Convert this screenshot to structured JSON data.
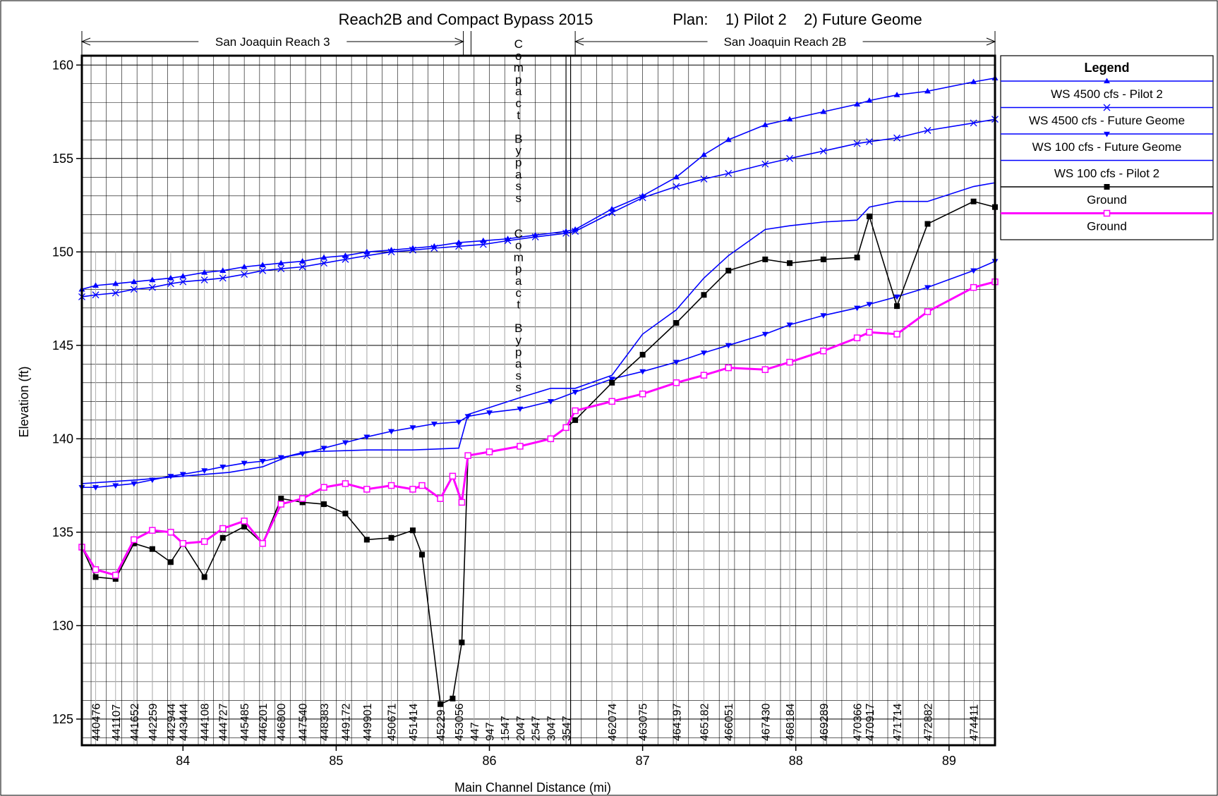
{
  "chart_data": {
    "type": "line",
    "title": "Reach2B and Compact Bypass 2015",
    "plan": "Plan:    1) Pilot 2    2) Future Geome",
    "xlabel": "Main Channel Distance (mi)",
    "ylabel": "Elevation (ft)",
    "xlim": [
      83.34,
      89.3
    ],
    "ylim": [
      123.6,
      160.5
    ],
    "xticks": [
      84,
      85,
      86,
      87,
      88,
      89
    ],
    "yticks": [
      125,
      130,
      135,
      140,
      145,
      150,
      155,
      160
    ],
    "grid": true,
    "legend_position": "right",
    "legend_title": "Legend",
    "reaches": [
      {
        "label": "San Joaquin Reach 3",
        "from": 83.34,
        "to": 85.83
      },
      {
        "label": "San Joaquin Reach 2B",
        "from": 86.56,
        "to": 89.3
      }
    ],
    "compact_label": "Compact Bypass",
    "series": [
      {
        "name": "WS  4500 cfs - Pilot 2",
        "color": "#0000ff",
        "marker": "tri-up",
        "points": [
          [
            83.34,
            148.0
          ],
          [
            83.43,
            148.2
          ],
          [
            83.56,
            148.3
          ],
          [
            83.68,
            148.4
          ],
          [
            83.8,
            148.5
          ],
          [
            83.92,
            148.6
          ],
          [
            84.0,
            148.7
          ],
          [
            84.14,
            148.9
          ],
          [
            84.26,
            149.0
          ],
          [
            84.4,
            149.2
          ],
          [
            84.52,
            149.3
          ],
          [
            84.64,
            149.4
          ],
          [
            84.78,
            149.5
          ],
          [
            84.92,
            149.7
          ],
          [
            85.06,
            149.8
          ],
          [
            85.2,
            150.0
          ],
          [
            85.36,
            150.1
          ],
          [
            85.5,
            150.2
          ],
          [
            85.64,
            150.3
          ],
          [
            85.8,
            150.5
          ],
          [
            85.96,
            150.6
          ],
          [
            86.12,
            150.7
          ],
          [
            86.3,
            150.9
          ],
          [
            86.5,
            151.1
          ],
          [
            86.56,
            151.2
          ],
          [
            86.8,
            152.3
          ],
          [
            87.0,
            153.0
          ],
          [
            87.22,
            154.0
          ],
          [
            87.4,
            155.2
          ],
          [
            87.56,
            156.0
          ],
          [
            87.8,
            156.8
          ],
          [
            87.96,
            157.1
          ],
          [
            88.18,
            157.5
          ],
          [
            88.4,
            157.9
          ],
          [
            88.48,
            158.1
          ],
          [
            88.66,
            158.4
          ],
          [
            88.86,
            158.6
          ],
          [
            89.16,
            159.1
          ],
          [
            89.3,
            159.3
          ]
        ]
      },
      {
        "name": "WS  4500 cfs - Future Geome",
        "color": "#0000ff",
        "marker": "x",
        "points": [
          [
            83.34,
            147.6
          ],
          [
            83.43,
            147.7
          ],
          [
            83.56,
            147.8
          ],
          [
            83.68,
            148.0
          ],
          [
            83.8,
            148.1
          ],
          [
            83.92,
            148.3
          ],
          [
            84.0,
            148.4
          ],
          [
            84.14,
            148.5
          ],
          [
            84.26,
            148.6
          ],
          [
            84.4,
            148.8
          ],
          [
            84.52,
            149.0
          ],
          [
            84.64,
            149.1
          ],
          [
            84.78,
            149.2
          ],
          [
            84.92,
            149.4
          ],
          [
            85.06,
            149.6
          ],
          [
            85.2,
            149.8
          ],
          [
            85.36,
            150.0
          ],
          [
            85.5,
            150.1
          ],
          [
            85.64,
            150.2
          ],
          [
            85.8,
            150.3
          ],
          [
            85.96,
            150.4
          ],
          [
            86.12,
            150.6
          ],
          [
            86.3,
            150.8
          ],
          [
            86.5,
            151.0
          ],
          [
            86.56,
            151.1
          ],
          [
            86.8,
            152.1
          ],
          [
            87.0,
            152.9
          ],
          [
            87.22,
            153.5
          ],
          [
            87.4,
            153.9
          ],
          [
            87.56,
            154.2
          ],
          [
            87.8,
            154.7
          ],
          [
            87.96,
            155.0
          ],
          [
            88.18,
            155.4
          ],
          [
            88.4,
            155.8
          ],
          [
            88.48,
            155.9
          ],
          [
            88.66,
            156.1
          ],
          [
            88.86,
            156.5
          ],
          [
            89.16,
            156.9
          ],
          [
            89.3,
            157.1
          ]
        ]
      },
      {
        "name": "WS  100 cfs - Future Geome",
        "color": "#0000ff",
        "marker": "tri-down",
        "points": [
          [
            83.34,
            137.4
          ],
          [
            83.43,
            137.4
          ],
          [
            83.56,
            137.5
          ],
          [
            83.68,
            137.6
          ],
          [
            83.8,
            137.8
          ],
          [
            83.92,
            138.0
          ],
          [
            84.0,
            138.1
          ],
          [
            84.14,
            138.3
          ],
          [
            84.26,
            138.5
          ],
          [
            84.4,
            138.7
          ],
          [
            84.52,
            138.8
          ],
          [
            84.64,
            139.0
          ],
          [
            84.78,
            139.2
          ],
          [
            84.92,
            139.5
          ],
          [
            85.06,
            139.8
          ],
          [
            85.2,
            140.1
          ],
          [
            85.36,
            140.4
          ],
          [
            85.5,
            140.6
          ],
          [
            85.64,
            140.8
          ],
          [
            85.8,
            140.9
          ],
          [
            85.86,
            141.2
          ],
          [
            86.0,
            141.4
          ],
          [
            86.2,
            141.6
          ],
          [
            86.4,
            142.0
          ],
          [
            86.56,
            142.5
          ],
          [
            86.8,
            143.2
          ],
          [
            87.0,
            143.6
          ],
          [
            87.22,
            144.1
          ],
          [
            87.4,
            144.6
          ],
          [
            87.56,
            145.0
          ],
          [
            87.8,
            145.6
          ],
          [
            87.96,
            146.1
          ],
          [
            88.18,
            146.6
          ],
          [
            88.4,
            147.0
          ],
          [
            88.48,
            147.2
          ],
          [
            88.66,
            147.6
          ],
          [
            88.86,
            148.1
          ],
          [
            89.16,
            149.0
          ],
          [
            89.3,
            149.5
          ]
        ]
      },
      {
        "name": "WS  100 cfs - Pilot 2",
        "color": "#0000ff",
        "marker": "none",
        "points": [
          [
            83.34,
            137.6
          ],
          [
            83.7,
            137.8
          ],
          [
            84.0,
            138.0
          ],
          [
            84.3,
            138.2
          ],
          [
            84.52,
            138.5
          ],
          [
            84.7,
            139.1
          ],
          [
            84.8,
            139.3
          ],
          [
            85.2,
            139.4
          ],
          [
            85.5,
            139.4
          ],
          [
            85.8,
            139.5
          ],
          [
            85.86,
            141.3
          ],
          [
            86.2,
            142.2
          ],
          [
            86.4,
            142.7
          ],
          [
            86.56,
            142.7
          ],
          [
            86.8,
            143.4
          ],
          [
            87.0,
            145.6
          ],
          [
            87.22,
            146.9
          ],
          [
            87.4,
            148.6
          ],
          [
            87.56,
            149.8
          ],
          [
            87.8,
            151.2
          ],
          [
            87.96,
            151.4
          ],
          [
            88.18,
            151.6
          ],
          [
            88.4,
            151.7
          ],
          [
            88.48,
            152.4
          ],
          [
            88.66,
            152.7
          ],
          [
            88.86,
            152.7
          ],
          [
            89.16,
            153.5
          ],
          [
            89.3,
            153.7
          ]
        ]
      },
      {
        "name": "Ground",
        "color": "#000000",
        "marker": "square",
        "points": [
          [
            83.34,
            134.2
          ],
          [
            83.43,
            132.6
          ],
          [
            83.56,
            132.5
          ],
          [
            83.68,
            134.4
          ],
          [
            83.8,
            134.1
          ],
          [
            83.92,
            133.4
          ],
          [
            84.0,
            134.4
          ],
          [
            84.14,
            132.6
          ],
          [
            84.26,
            134.7
          ],
          [
            84.4,
            135.3
          ],
          [
            84.52,
            134.4
          ],
          [
            84.64,
            136.8
          ],
          [
            84.78,
            136.6
          ],
          [
            84.92,
            136.5
          ],
          [
            85.06,
            136.0
          ],
          [
            85.2,
            134.6
          ],
          [
            85.36,
            134.7
          ],
          [
            85.5,
            135.1
          ],
          [
            85.56,
            133.8
          ],
          [
            85.68,
            125.8
          ],
          [
            85.76,
            126.1
          ],
          [
            85.82,
            129.1
          ],
          [
            85.86,
            139.1
          ],
          [
            86.0,
            139.3
          ],
          [
            86.2,
            139.6
          ],
          [
            86.4,
            140.0
          ],
          [
            86.5,
            140.6
          ],
          [
            86.56,
            141.0
          ],
          [
            86.8,
            143.0
          ],
          [
            87.0,
            144.5
          ],
          [
            87.22,
            146.2
          ],
          [
            87.4,
            147.7
          ],
          [
            87.56,
            149.0
          ],
          [
            87.8,
            149.6
          ],
          [
            87.96,
            149.4
          ],
          [
            88.18,
            149.6
          ],
          [
            88.4,
            149.7
          ],
          [
            88.48,
            151.9
          ],
          [
            88.66,
            147.1
          ],
          [
            88.86,
            151.5
          ],
          [
            89.16,
            152.7
          ],
          [
            89.3,
            152.4
          ]
        ]
      },
      {
        "name": "Ground",
        "color": "#ff00ff",
        "marker": "square-open",
        "points": [
          [
            83.34,
            134.2
          ],
          [
            83.43,
            133.0
          ],
          [
            83.56,
            132.7
          ],
          [
            83.68,
            134.6
          ],
          [
            83.8,
            135.1
          ],
          [
            83.92,
            135.0
          ],
          [
            84.0,
            134.4
          ],
          [
            84.14,
            134.5
          ],
          [
            84.26,
            135.2
          ],
          [
            84.4,
            135.6
          ],
          [
            84.52,
            134.4
          ],
          [
            84.64,
            136.5
          ],
          [
            84.78,
            136.8
          ],
          [
            84.92,
            137.4
          ],
          [
            85.06,
            137.6
          ],
          [
            85.2,
            137.3
          ],
          [
            85.36,
            137.5
          ],
          [
            85.5,
            137.3
          ],
          [
            85.56,
            137.5
          ],
          [
            85.68,
            136.8
          ],
          [
            85.76,
            138.0
          ],
          [
            85.82,
            136.6
          ],
          [
            85.86,
            139.1
          ],
          [
            86.0,
            139.3
          ],
          [
            86.2,
            139.6
          ],
          [
            86.4,
            140.0
          ],
          [
            86.5,
            140.6
          ],
          [
            86.56,
            141.5
          ],
          [
            86.8,
            142.0
          ],
          [
            87.0,
            142.4
          ],
          [
            87.22,
            143.0
          ],
          [
            87.4,
            143.4
          ],
          [
            87.56,
            143.8
          ],
          [
            87.8,
            143.7
          ],
          [
            87.96,
            144.1
          ],
          [
            88.18,
            144.7
          ],
          [
            88.4,
            145.4
          ],
          [
            88.48,
            145.7
          ],
          [
            88.66,
            145.6
          ],
          [
            88.86,
            146.8
          ],
          [
            89.16,
            148.1
          ],
          [
            89.3,
            148.4
          ]
        ]
      }
    ],
    "station_labels": [
      {
        "x": 83.43,
        "label": "440476"
      },
      {
        "x": 83.56,
        "label": "441107"
      },
      {
        "x": 83.68,
        "label": "441652"
      },
      {
        "x": 83.8,
        "label": "442259"
      },
      {
        "x": 83.92,
        "label": "442944"
      },
      {
        "x": 84.0,
        "label": "443444"
      },
      {
        "x": 84.14,
        "label": "444108"
      },
      {
        "x": 84.26,
        "label": "444727"
      },
      {
        "x": 84.4,
        "label": "445485"
      },
      {
        "x": 84.52,
        "label": "446201"
      },
      {
        "x": 84.64,
        "label": "446800"
      },
      {
        "x": 84.78,
        "label": "447540"
      },
      {
        "x": 84.92,
        "label": "448383"
      },
      {
        "x": 85.06,
        "label": "449172"
      },
      {
        "x": 85.2,
        "label": "449901"
      },
      {
        "x": 85.36,
        "label": "450671"
      },
      {
        "x": 85.5,
        "label": "451414"
      },
      {
        "x": 85.68,
        "label": "45229"
      },
      {
        "x": 85.8,
        "label": "453056"
      },
      {
        "x": 85.9,
        "label": "447"
      },
      {
        "x": 86.0,
        "label": "947"
      },
      {
        "x": 86.1,
        "label": "1547"
      },
      {
        "x": 86.2,
        "label": "2047"
      },
      {
        "x": 86.3,
        "label": "2547"
      },
      {
        "x": 86.4,
        "label": "3047"
      },
      {
        "x": 86.5,
        "label": "3547"
      },
      {
        "x": 86.8,
        "label": "462074"
      },
      {
        "x": 87.0,
        "label": "463075"
      },
      {
        "x": 87.22,
        "label": "464197"
      },
      {
        "x": 87.4,
        "label": "465182"
      },
      {
        "x": 87.56,
        "label": "466051"
      },
      {
        "x": 87.8,
        "label": "467430"
      },
      {
        "x": 87.96,
        "label": "468184"
      },
      {
        "x": 88.18,
        "label": "469289"
      },
      {
        "x": 88.4,
        "label": "470366"
      },
      {
        "x": 88.48,
        "label": "470917"
      },
      {
        "x": 88.66,
        "label": "471714"
      },
      {
        "x": 88.86,
        "label": "472882"
      },
      {
        "x": 89.16,
        "label": "474411"
      }
    ]
  }
}
